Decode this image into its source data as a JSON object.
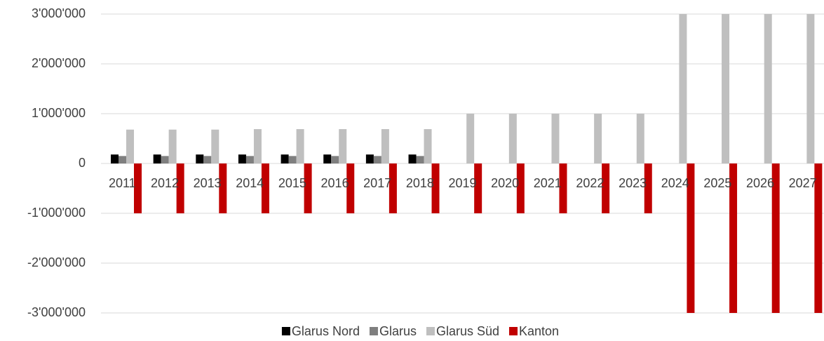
{
  "chart_data": {
    "type": "bar",
    "categories": [
      "2011",
      "2012",
      "2013",
      "2014",
      "2015",
      "2016",
      "2017",
      "2018",
      "2019",
      "2020",
      "2021",
      "2022",
      "2023",
      "2024",
      "2025",
      "2026",
      "2027"
    ],
    "series": [
      {
        "name": "Glarus Nord",
        "color": "#000000",
        "values": [
          180000,
          180000,
          180000,
          180000,
          180000,
          180000,
          180000,
          180000,
          null,
          null,
          null,
          null,
          null,
          null,
          null,
          null,
          null
        ]
      },
      {
        "name": "Glarus",
        "color": "#7f7f7f",
        "values": [
          150000,
          150000,
          150000,
          150000,
          150000,
          150000,
          150000,
          150000,
          null,
          null,
          null,
          null,
          null,
          null,
          null,
          null,
          null
        ]
      },
      {
        "name": "Glarus Süd",
        "color": "#bfbfbf",
        "values": [
          680000,
          680000,
          680000,
          690000,
          690000,
          690000,
          690000,
          690000,
          1000000,
          1000000,
          1000000,
          1000000,
          1000000,
          3000000,
          3000000,
          3000000,
          3000000
        ]
      },
      {
        "name": "Kanton",
        "color": "#c00000",
        "values": [
          -1000000,
          -1000000,
          -1000000,
          -1000000,
          -1000000,
          -1000000,
          -1000000,
          -1000000,
          -1000000,
          -1000000,
          -1000000,
          -1000000,
          -1000000,
          -3000000,
          -3000000,
          -3000000,
          -3000000
        ]
      }
    ],
    "ylim": [
      -3000000,
      3000000
    ],
    "yticks": [
      {
        "value": -3000000,
        "label": "-3'000'000"
      },
      {
        "value": -2000000,
        "label": "-2'000'000"
      },
      {
        "value": -1000000,
        "label": "-1'000'000"
      },
      0,
      {
        "value": 1000000,
        "label": "1'000'000"
      },
      {
        "value": 2000000,
        "label": "2'000'000"
      },
      {
        "value": 3000000,
        "label": "3'000'000"
      }
    ],
    "grid": true,
    "legend": "bottom"
  }
}
